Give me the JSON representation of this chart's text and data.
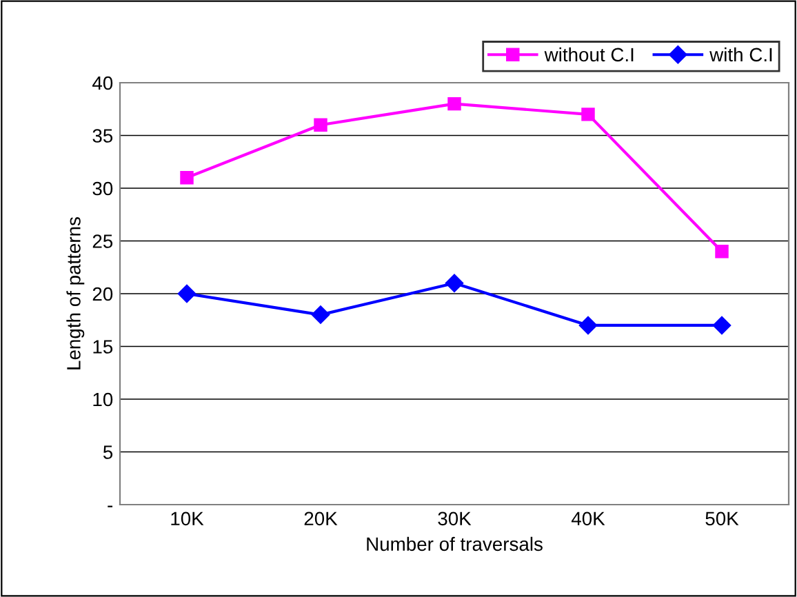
{
  "chart_data": {
    "type": "line",
    "xlabel": "Number of traversals",
    "ylabel": "Length of patterns",
    "categories": [
      "10K",
      "20K",
      "30K",
      "40K",
      "50K"
    ],
    "series": [
      {
        "name": "without C.I",
        "color": "#ff00ff",
        "marker": "square",
        "values": [
          31,
          36,
          38,
          37,
          24
        ]
      },
      {
        "name": "with C.I",
        "color": "#0000ff",
        "marker": "diamond",
        "values": [
          20,
          18,
          21,
          17,
          17
        ]
      }
    ],
    "ylim": [
      0,
      40
    ],
    "yticks": [
      {
        "value": 0,
        "label": "-"
      },
      5,
      10,
      15,
      20,
      25,
      30,
      35,
      40
    ],
    "grid": "y",
    "legend": "top right",
    "line_style": "solid"
  }
}
